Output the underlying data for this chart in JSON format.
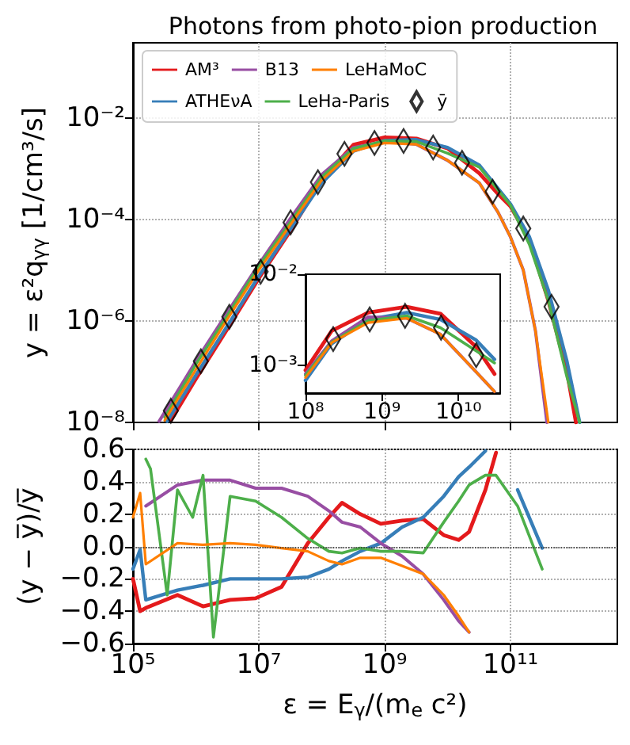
{
  "chart_data": [
    {
      "type": "line",
      "title": "Photons from photo-pion production",
      "ylabel": "y = ε²q$_{γγ}$ [1/cm³/s]",
      "xlim": [
        100000,
        5000000000000.0
      ],
      "ylim": [
        1e-08,
        0.3
      ],
      "xticks": [
        {
          "value": 100000,
          "label": null
        },
        {
          "value": 10000000.0,
          "label": null
        },
        {
          "value": 1000000000.0,
          "label": null
        },
        {
          "value": 100000000000.0,
          "label": null
        }
      ],
      "yticks": [
        {
          "value": 1e-08,
          "label": "10⁻⁸"
        },
        {
          "value": 1e-06,
          "label": "10⁻⁶"
        },
        {
          "value": 0.0001,
          "label": "10⁻⁴"
        },
        {
          "value": 0.01,
          "label": "10⁻²"
        }
      ],
      "log": "xy",
      "grid": true,
      "legend": "top left",
      "tick_labels": "y",
      "series": [
        {
          "name": "AM³",
          "color": "#e41a1c",
          "x": [
            400000,
            1000000.0,
            3200000.0,
            10000000.0,
            32000000.0,
            100000000.0,
            320000000.0,
            1000000000.0,
            3200000000.0,
            10000000000.0,
            32000000000.0,
            63000000000.0,
            100000000000.0,
            200000000000.0,
            400000000000.0,
            790000000000.0,
            1100000000000.0
          ],
          "values": [
            1.1e-08,
            7.2e-08,
            7.1e-07,
            6.9e-06,
            6e-05,
            0.0006,
            0.00295,
            0.0041,
            0.0039,
            0.0025,
            0.00081,
            0.00032,
            0.00018,
            4e-05,
            2.5e-06,
            1e-07,
            1e-08
          ]
        },
        {
          "name": "ATHEνA",
          "color": "#377eb8",
          "x": [
            350000,
            1000000.0,
            3200000.0,
            10000000.0,
            32000000.0,
            100000000.0,
            320000000.0,
            1000000000.0,
            3200000000.0,
            10000000000.0,
            32000000000.0,
            100000000000.0,
            200000000000.0,
            400000000000.0,
            790000000000.0,
            1260000000000.0
          ],
          "values": [
            1.05e-08,
            8.5e-08,
            8.1e-07,
            7.6e-06,
            6.5e-05,
            0.00052,
            0.0022,
            0.00355,
            0.0037,
            0.0026,
            0.00117,
            0.0002,
            4.5e-05,
            4e-06,
            1.6e-07,
            1e-08
          ]
        },
        {
          "name": "B13",
          "color": "#984ea3",
          "x": [
            260000,
            1000000.0,
            3200000.0,
            10000000.0,
            32000000.0,
            100000000.0,
            320000000.0,
            1000000000.0,
            3200000000.0,
            10000000000.0,
            32000000000.0,
            63000000000.0,
            100000000000.0,
            160000000000.0,
            250000000000.0,
            380000000000.0
          ],
          "values": [
            1.05e-08,
            1.6e-07,
            1.5e-06,
            1.3e-05,
            0.000105,
            0.00076,
            0.0026,
            0.0034,
            0.003,
            0.00145,
            0.00052,
            0.00014,
            4.5e-05,
            1e-05,
            6.3e-07,
            1e-08
          ]
        },
        {
          "name": "LeHa-Paris",
          "color": "#4daf4a",
          "x": [
            320000,
            1000000.0,
            3200000.0,
            10000000.0,
            32000000.0,
            100000000.0,
            320000000.0,
            1000000000.0,
            3200000000.0,
            10000000000.0,
            32000000000.0,
            100000000000.0,
            200000000000.0,
            400000000000.0,
            790000000000.0,
            1260000000000.0
          ],
          "values": [
            1.26e-08,
            1.4e-07,
            1.3e-06,
            1.2e-05,
            8.9e-05,
            0.00068,
            0.0025,
            0.0035,
            0.0034,
            0.002,
            0.00107,
            0.00019,
            3.2e-05,
            2.5e-06,
            7.9e-08,
            1e-08
          ]
        },
        {
          "name": "LeHaMoC",
          "color": "#ff7f00",
          "x": [
            320000,
            1000000.0,
            3200000.0,
            10000000.0,
            32000000.0,
            100000000.0,
            320000000.0,
            1000000000.0,
            3200000000.0,
            10000000000.0,
            32000000000.0,
            63000000000.0,
            100000000000.0,
            160000000000.0,
            250000000000.0,
            400000000000.0
          ],
          "values": [
            1.1e-08,
            1.1e-07,
            1.1e-06,
            1e-05,
            7.9e-05,
            0.00059,
            0.0022,
            0.0032,
            0.003,
            0.00145,
            0.00052,
            0.00014,
            4.5e-05,
            1e-05,
            6.3e-07,
            1e-08
          ]
        },
        {
          "name": "ȳ",
          "type": "scatter",
          "marker": "diamond",
          "color": "#000000",
          "x": [
            400000,
            1200000.0,
            3400000.0,
            10700000.0,
            32000000.0,
            87000000.0,
            230000000.0,
            690000000.0,
            2000000000.0,
            5900000000.0,
            17000000000.0,
            52000000000.0,
            160000000000.0,
            450000000000.0
          ],
          "values": [
            1.7e-08,
            1.6e-07,
            1.2e-06,
            9.3e-06,
            8.7e-05,
            0.00054,
            0.00195,
            0.0032,
            0.0035,
            0.0026,
            0.0013,
            0.00035,
            6.6e-05,
            1.9e-06
          ]
        }
      ]
    },
    {
      "type": "line",
      "xlabel": "ε = E$_{γ}$/(m$_{e}$ c²)",
      "ylabel": "(y − y̅)/y̅",
      "xlim": [
        100000,
        5000000000000.0
      ],
      "ylim": [
        -0.6,
        0.6
      ],
      "xticks": [
        {
          "value": 100000,
          "label": "10⁵"
        },
        {
          "value": 10000000.0,
          "label": "10⁷"
        },
        {
          "value": 1000000000.0,
          "label": "10⁹"
        },
        {
          "value": 100000000000.0,
          "label": "10¹¹"
        }
      ],
      "yticks": [
        {
          "value": -0.6,
          "label": "−0.6"
        },
        {
          "value": -0.4,
          "label": "−0.4"
        },
        {
          "value": -0.2,
          "label": "−0.2"
        },
        {
          "value": 0,
          "label": "0.0"
        },
        0.2,
        0.4,
        0.6
      ],
      "log": "x",
      "grid": true,
      "ref_lines": [
        {
          "axis": "y",
          "value": 0,
          "color": "#333333",
          "line_style": "dotted"
        }
      ],
      "x": [
        100000,
        130000,
        160000,
        510000,
        1300000.0,
        3500000.0,
        8900000.0,
        23000000.0,
        60000000.0,
        130000000.0,
        210000000.0,
        410000000.0,
        870000000.0,
        1900000000.0,
        4100000000.0,
        8700000000.0,
        15000000000.0,
        22000000000.0,
        40000000000.0,
        59000000000.0,
        130000000000.0,
        320000000000.0
      ],
      "series": [
        {
          "color": "#e41a1c",
          "values": [
            -0.2,
            -0.4,
            -0.38,
            -0.3,
            -0.37,
            -0.33,
            -0.32,
            -0.25,
            0.02,
            0.18,
            0.27,
            0.2,
            0.14,
            0.16,
            0.17,
            0.07,
            0.04,
            0.09,
            0.35,
            0.58,
            null,
            null
          ]
        },
        {
          "color": "#377eb8",
          "values": [
            -0.14,
            -0.02,
            -0.33,
            -0.27,
            -0.24,
            -0.2,
            -0.2,
            -0.2,
            -0.19,
            -0.14,
            -0.09,
            -0.03,
            0.02,
            0.12,
            0.18,
            0.31,
            0.43,
            0.49,
            0.59,
            null,
            0.35,
            -0.01
          ]
        },
        {
          "color": "#984ea3",
          "values": [
            null,
            null,
            0.25,
            0.38,
            0.41,
            0.41,
            0.36,
            0.36,
            0.31,
            0.22,
            0.15,
            0.12,
            0.02,
            -0.06,
            -0.17,
            -0.33,
            -0.46,
            -0.53,
            null,
            null,
            null,
            null
          ]
        },
        {
          "color": "#4daf4a",
          "x": [
            160000,
            190000,
            350000,
            510000,
            890000,
            1300000.0,
            1900000.0,
            3500000.0,
            8900000.0,
            23000000.0,
            60000000.0,
            130000000.0,
            210000000.0,
            410000000.0,
            870000000.0,
            1900000000.0,
            4100000000.0,
            8700000000.0,
            15000000000.0,
            22000000000.0,
            40000000000.0,
            59000000000.0,
            130000000000.0,
            320000000000.0
          ],
          "values": [
            0.54,
            0.48,
            -0.3,
            0.35,
            0.18,
            0.44,
            -0.56,
            0.31,
            0.28,
            0.18,
            0.05,
            -0.03,
            -0.04,
            -0.01,
            -0.03,
            -0.03,
            -0.04,
            0.15,
            0.28,
            0.38,
            0.44,
            0.44,
            0.25,
            -0.14
          ]
        },
        {
          "color": "#ff7f00",
          "values": [
            0.18,
            0.33,
            -0.11,
            0.02,
            0.01,
            0.02,
            0.01,
            -0.01,
            -0.03,
            -0.09,
            -0.11,
            -0.07,
            -0.07,
            -0.12,
            -0.17,
            -0.3,
            -0.43,
            -0.53,
            null,
            null,
            null,
            null
          ]
        }
      ]
    },
    {
      "type": "line",
      "xlim": [
        100000000.0,
        35000000000.0
      ],
      "ylim": [
        0.0005,
        0.01
      ],
      "xticks": [
        {
          "value": 100000000.0,
          "label": "10⁸"
        },
        {
          "value": 1000000000.0,
          "label": "10⁹"
        },
        {
          "value": 10000000000.0,
          "label": "10¹⁰"
        }
      ],
      "yticks": [
        {
          "value": 0.001,
          "label": "10⁻³"
        },
        {
          "value": 0.01,
          "label": "10⁻²"
        }
      ],
      "log": "xy",
      "x": [
        100000000.0,
        220000000.0,
        660000000.0,
        2100000000.0,
        5800000000.0,
        17000000000.0,
        29500000000.0
      ],
      "series": [
        {
          "color": "#e41a1c",
          "values": [
            0.00089,
            0.0024,
            0.0038,
            0.0044,
            0.0037,
            0.0016,
            0.00081
          ]
        },
        {
          "color": "#377eb8",
          "values": [
            0.00069,
            0.00174,
            0.0032,
            0.0038,
            0.0032,
            0.0019,
            0.00117
          ]
        },
        {
          "color": "#984ea3",
          "values": [
            0.00081,
            0.00186,
            0.0034,
            0.0033,
            0.0022,
            0.00085,
            0.00052
          ]
        },
        {
          "color": "#4daf4a",
          "values": [
            0.00078,
            0.0018,
            0.0031,
            0.0035,
            0.0026,
            0.00145,
            0.00107
          ]
        },
        {
          "color": "#ff7f00",
          "values": [
            0.00074,
            0.00178,
            0.00295,
            0.0033,
            0.0022,
            0.00085,
            0.00052
          ]
        },
        {
          "type": "scatter",
          "marker": "diamond",
          "color": "#000000",
          "x": [
            230000000.0,
            690000000.0,
            2000000000.0,
            5900000000.0,
            17000000000.0
          ],
          "values": [
            0.00195,
            0.0032,
            0.0035,
            0.0026,
            0.0013
          ]
        }
      ]
    }
  ]
}
